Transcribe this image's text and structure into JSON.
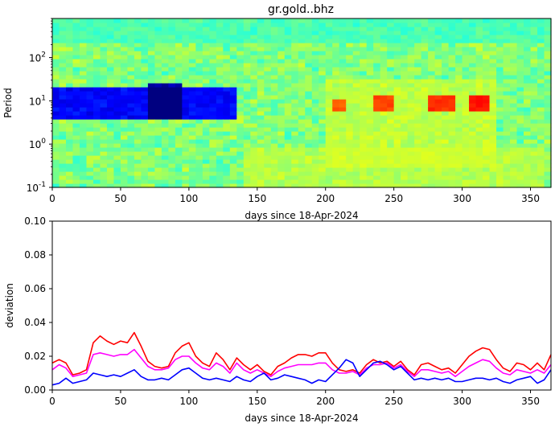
{
  "chart_data": [
    {
      "type": "heatmap",
      "title": "gr.gold..bhz",
      "xlabel": "days since 18-Apr-2024",
      "ylabel": "Period",
      "xlim": [
        0,
        365
      ],
      "ylim": [
        0.1,
        800
      ],
      "yscale": "log",
      "xticks": [
        0,
        50,
        100,
        150,
        200,
        250,
        300,
        350
      ],
      "yticks": [
        {
          "base": "10",
          "exp": "-1",
          "value": 0.1
        },
        {
          "base": "10",
          "exp": "0",
          "value": 1
        },
        {
          "base": "10",
          "exp": "1",
          "value": 10
        },
        {
          "base": "10",
          "exp": "2",
          "value": 100
        }
      ],
      "colormap": "jet",
      "clim": [
        -1,
        1
      ],
      "features": [
        {
          "x": [
            0,
            135
          ],
          "period": [
            4,
            20
          ],
          "value": -0.75
        },
        {
          "x": [
            72,
            95
          ],
          "period": [
            4,
            25
          ],
          "value": -0.9
        },
        {
          "x": [
            200,
            325
          ],
          "period": [
            0.3,
            30
          ],
          "value": 0.12
        },
        {
          "x": [
            207,
            215
          ],
          "period": [
            6,
            12
          ],
          "value": 0.5
        },
        {
          "x": [
            237,
            250
          ],
          "period": [
            6,
            14
          ],
          "value": 0.55
        },
        {
          "x": [
            275,
            295
          ],
          "period": [
            6,
            14
          ],
          "value": 0.6
        },
        {
          "x": [
            303,
            320
          ],
          "period": [
            6,
            14
          ],
          "value": 0.65
        },
        {
          "x": [
            140,
            360
          ],
          "period": [
            0.1,
            0.8
          ],
          "value": 0.1
        },
        {
          "x": [
            0,
            365
          ],
          "period": [
            200,
            800
          ],
          "value": -0.1
        }
      ]
    },
    {
      "type": "line",
      "xlabel": "days since 18-Apr-2024",
      "ylabel": "deviation",
      "xlim": [
        0,
        365
      ],
      "ylim": [
        0,
        0.1
      ],
      "xticks": [
        0,
        50,
        100,
        150,
        200,
        250,
        300,
        350
      ],
      "yticks": [
        "0.00",
        "0.02",
        "0.04",
        "0.06",
        "0.08",
        "0.10"
      ],
      "series": [
        {
          "color": "#ff0000",
          "x": [
            0,
            5,
            10,
            15,
            20,
            25,
            30,
            35,
            40,
            45,
            50,
            55,
            60,
            65,
            70,
            75,
            80,
            85,
            90,
            95,
            100,
            105,
            110,
            115,
            120,
            125,
            130,
            135,
            140,
            145,
            150,
            155,
            160,
            165,
            170,
            175,
            180,
            185,
            190,
            195,
            200,
            205,
            210,
            215,
            220,
            225,
            230,
            235,
            240,
            245,
            250,
            255,
            260,
            265,
            270,
            275,
            280,
            285,
            290,
            295,
            300,
            305,
            310,
            315,
            320,
            325,
            330,
            335,
            340,
            345,
            350,
            355,
            360,
            365
          ],
          "values": [
            0.016,
            0.018,
            0.016,
            0.009,
            0.01,
            0.012,
            0.028,
            0.032,
            0.029,
            0.027,
            0.029,
            0.028,
            0.034,
            0.026,
            0.017,
            0.014,
            0.013,
            0.014,
            0.022,
            0.026,
            0.028,
            0.02,
            0.016,
            0.014,
            0.022,
            0.018,
            0.012,
            0.019,
            0.015,
            0.012,
            0.015,
            0.011,
            0.009,
            0.014,
            0.016,
            0.019,
            0.021,
            0.021,
            0.02,
            0.022,
            0.022,
            0.016,
            0.012,
            0.011,
            0.012,
            0.01,
            0.015,
            0.018,
            0.016,
            0.017,
            0.014,
            0.017,
            0.012,
            0.009,
            0.015,
            0.016,
            0.014,
            0.012,
            0.013,
            0.01,
            0.015,
            0.02,
            0.023,
            0.025,
            0.024,
            0.018,
            0.013,
            0.011,
            0.016,
            0.015,
            0.012,
            0.016,
            0.012,
            0.021
          ]
        },
        {
          "color": "#ff00ff",
          "x": [
            0,
            5,
            10,
            15,
            20,
            25,
            30,
            35,
            40,
            45,
            50,
            55,
            60,
            65,
            70,
            75,
            80,
            85,
            90,
            95,
            100,
            105,
            110,
            115,
            120,
            125,
            130,
            135,
            140,
            145,
            150,
            155,
            160,
            165,
            170,
            175,
            180,
            185,
            190,
            195,
            200,
            205,
            210,
            215,
            220,
            225,
            230,
            235,
            240,
            245,
            250,
            255,
            260,
            265,
            270,
            275,
            280,
            285,
            290,
            295,
            300,
            305,
            310,
            315,
            320,
            325,
            330,
            335,
            340,
            345,
            350,
            355,
            360,
            365
          ],
          "values": [
            0.012,
            0.015,
            0.013,
            0.008,
            0.009,
            0.01,
            0.021,
            0.022,
            0.021,
            0.02,
            0.021,
            0.021,
            0.024,
            0.019,
            0.014,
            0.012,
            0.012,
            0.013,
            0.018,
            0.02,
            0.02,
            0.016,
            0.013,
            0.012,
            0.016,
            0.014,
            0.01,
            0.016,
            0.012,
            0.01,
            0.012,
            0.01,
            0.008,
            0.011,
            0.013,
            0.014,
            0.015,
            0.015,
            0.015,
            0.016,
            0.016,
            0.012,
            0.01,
            0.01,
            0.011,
            0.009,
            0.013,
            0.015,
            0.015,
            0.016,
            0.013,
            0.015,
            0.011,
            0.008,
            0.012,
            0.012,
            0.011,
            0.01,
            0.011,
            0.008,
            0.011,
            0.014,
            0.016,
            0.018,
            0.017,
            0.013,
            0.01,
            0.009,
            0.012,
            0.011,
            0.01,
            0.012,
            0.01,
            0.015
          ]
        },
        {
          "color": "#0000ff",
          "x": [
            0,
            5,
            10,
            15,
            20,
            25,
            30,
            35,
            40,
            45,
            50,
            55,
            60,
            65,
            70,
            75,
            80,
            85,
            90,
            95,
            100,
            105,
            110,
            115,
            120,
            125,
            130,
            135,
            140,
            145,
            150,
            155,
            160,
            165,
            170,
            175,
            180,
            185,
            190,
            195,
            200,
            205,
            210,
            215,
            220,
            225,
            230,
            235,
            240,
            245,
            250,
            255,
            260,
            265,
            270,
            275,
            280,
            285,
            290,
            295,
            300,
            305,
            310,
            315,
            320,
            325,
            330,
            335,
            340,
            345,
            350,
            355,
            360,
            365
          ],
          "values": [
            0.003,
            0.004,
            0.007,
            0.004,
            0.005,
            0.006,
            0.01,
            0.009,
            0.008,
            0.009,
            0.008,
            0.01,
            0.012,
            0.008,
            0.006,
            0.006,
            0.007,
            0.006,
            0.009,
            0.012,
            0.013,
            0.01,
            0.007,
            0.006,
            0.007,
            0.006,
            0.005,
            0.008,
            0.006,
            0.005,
            0.008,
            0.01,
            0.006,
            0.007,
            0.009,
            0.008,
            0.007,
            0.006,
            0.004,
            0.006,
            0.005,
            0.009,
            0.013,
            0.018,
            0.016,
            0.008,
            0.012,
            0.016,
            0.017,
            0.015,
            0.012,
            0.014,
            0.01,
            0.006,
            0.007,
            0.006,
            0.007,
            0.006,
            0.007,
            0.005,
            0.005,
            0.006,
            0.007,
            0.007,
            0.006,
            0.007,
            0.005,
            0.004,
            0.006,
            0.007,
            0.008,
            0.004,
            0.006,
            0.012
          ]
        }
      ]
    }
  ]
}
